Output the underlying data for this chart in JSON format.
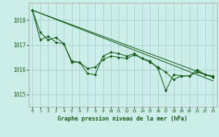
{
  "title": "Graphe pression niveau de la mer (hPa)",
  "background_color": "#cceee8",
  "grid_color": "#aacccc",
  "line_color": "#1a5c1a",
  "marker_color": "#1a5c1a",
  "xlim": [
    -0.5,
    23.5
  ],
  "ylim": [
    1014.5,
    1018.7
  ],
  "yticks": [
    1015,
    1016,
    1017,
    1018
  ],
  "xticks": [
    0,
    1,
    2,
    3,
    4,
    5,
    6,
    7,
    8,
    9,
    10,
    11,
    12,
    13,
    14,
    15,
    16,
    17,
    18,
    19,
    20,
    21,
    22,
    23
  ],
  "line1_x": [
    0,
    1,
    2,
    3,
    4,
    5,
    6,
    7,
    8,
    9,
    10,
    11,
    12,
    13,
    14,
    15,
    16,
    17,
    18,
    19,
    20,
    21,
    22,
    23
  ],
  "line1_y": [
    1018.4,
    1017.5,
    1017.2,
    1017.3,
    1017.05,
    1016.3,
    1016.3,
    1015.85,
    1015.8,
    1016.55,
    1016.7,
    1016.65,
    1016.55,
    1016.65,
    1016.45,
    1016.35,
    1016.05,
    1015.15,
    1015.8,
    1015.75,
    1015.75,
    1016.0,
    1015.8,
    1015.75
  ],
  "line2_x": [
    0,
    1,
    2,
    3,
    4,
    5,
    6,
    7,
    8,
    9,
    10,
    11,
    12,
    13,
    14,
    15,
    16,
    17,
    18,
    19,
    20,
    21,
    22,
    23
  ],
  "line2_y": [
    1018.4,
    1017.2,
    1017.35,
    1017.1,
    1017.05,
    1016.35,
    1016.3,
    1016.05,
    1016.1,
    1016.4,
    1016.55,
    1016.5,
    1016.45,
    1016.6,
    1016.45,
    1016.3,
    1016.1,
    1015.9,
    1015.6,
    1015.75,
    1015.75,
    1015.9,
    1015.8,
    1015.7
  ],
  "trend1_x": [
    0,
    23
  ],
  "trend1_y": [
    1018.4,
    1015.55
  ],
  "trend2_x": [
    0,
    23
  ],
  "trend2_y": [
    1018.4,
    1015.7
  ]
}
